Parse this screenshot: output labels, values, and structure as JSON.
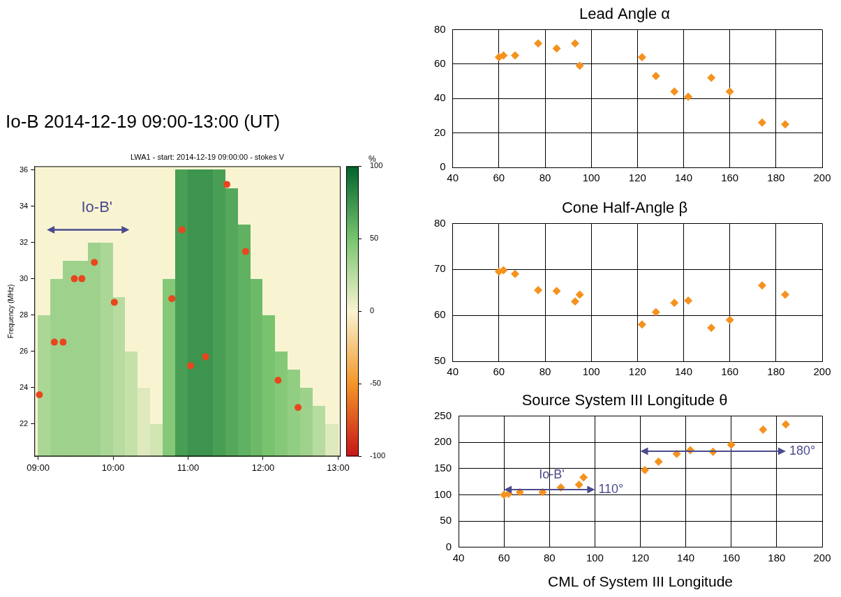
{
  "chart_data": [
    {
      "type": "heatmap",
      "title": "Io-B 2014-12-19 09:00-13:00 (UT)",
      "subtitle": "LWA1 - start: 2014-12-19 09:00:00 - stokes V",
      "y_label": "Frequency (MHz)",
      "xlim": [
        537,
        782
      ],
      "xticks": [
        {
          "value": 540,
          "label": "09:00"
        },
        {
          "value": 600,
          "label": "10:00"
        },
        {
          "value": 660,
          "label": "11:00"
        },
        {
          "value": 720,
          "label": "12:00"
        },
        {
          "value": 780,
          "label": "13:00"
        }
      ],
      "ylim": [
        20.2,
        36.2
      ],
      "yticks": [
        22,
        24,
        26,
        28,
        30,
        32,
        34,
        36
      ],
      "grid": false,
      "heatmap": {
        "x_edges": [
          540,
          550,
          560,
          570,
          580,
          590,
          600,
          610,
          620,
          630,
          640,
          650,
          660,
          670,
          680,
          690,
          700,
          710,
          720,
          730,
          740,
          750,
          760,
          770,
          780
        ],
        "y_edges": [
          20,
          21,
          22,
          23,
          24,
          25,
          26,
          27,
          28,
          29,
          30,
          31,
          32,
          33,
          34,
          35,
          36
        ],
        "cells": [
          [
            30,
            35,
            35,
            35,
            35,
            30,
            25,
            20,
            10,
            15,
            45,
            70,
            75,
            75,
            70,
            65,
            60,
            55,
            50,
            45,
            40,
            35,
            25,
            10
          ],
          [
            30,
            35,
            35,
            35,
            35,
            30,
            25,
            20,
            10,
            15,
            45,
            70,
            75,
            75,
            70,
            65,
            60,
            55,
            50,
            45,
            40,
            35,
            25,
            10
          ],
          [
            30,
            35,
            35,
            35,
            35,
            30,
            25,
            20,
            10,
            0,
            45,
            70,
            75,
            75,
            70,
            65,
            60,
            55,
            50,
            45,
            40,
            35,
            25,
            0
          ],
          [
            30,
            35,
            35,
            35,
            35,
            30,
            25,
            20,
            10,
            0,
            45,
            70,
            75,
            75,
            70,
            65,
            60,
            55,
            50,
            45,
            40,
            35,
            0,
            0
          ],
          [
            30,
            35,
            35,
            35,
            35,
            30,
            25,
            20,
            0,
            0,
            45,
            70,
            75,
            75,
            70,
            65,
            60,
            55,
            50,
            45,
            40,
            0,
            0,
            0
          ],
          [
            30,
            35,
            35,
            35,
            35,
            30,
            25,
            20,
            0,
            0,
            45,
            70,
            75,
            75,
            70,
            65,
            60,
            55,
            50,
            45,
            0,
            0,
            0,
            0
          ],
          [
            30,
            35,
            35,
            35,
            35,
            30,
            25,
            0,
            0,
            0,
            45,
            70,
            75,
            75,
            70,
            65,
            60,
            55,
            50,
            0,
            0,
            0,
            0,
            0
          ],
          [
            30,
            35,
            35,
            35,
            35,
            30,
            25,
            0,
            0,
            0,
            45,
            70,
            75,
            75,
            70,
            65,
            60,
            55,
            50,
            0,
            0,
            0,
            0,
            0
          ],
          [
            0,
            35,
            35,
            35,
            35,
            30,
            25,
            0,
            0,
            0,
            45,
            70,
            75,
            75,
            70,
            65,
            60,
            55,
            0,
            0,
            0,
            0,
            0,
            0
          ],
          [
            0,
            35,
            35,
            35,
            35,
            30,
            0,
            0,
            0,
            0,
            45,
            70,
            75,
            75,
            70,
            65,
            60,
            55,
            0,
            0,
            0,
            0,
            0,
            0
          ],
          [
            0,
            0,
            35,
            35,
            35,
            30,
            0,
            0,
            0,
            0,
            0,
            70,
            75,
            75,
            70,
            65,
            60,
            0,
            0,
            0,
            0,
            0,
            0,
            0
          ],
          [
            0,
            0,
            0,
            0,
            35,
            30,
            0,
            0,
            0,
            0,
            0,
            70,
            75,
            75,
            70,
            65,
            60,
            0,
            0,
            0,
            0,
            0,
            0,
            0
          ],
          [
            0,
            0,
            0,
            0,
            0,
            0,
            0,
            0,
            0,
            0,
            0,
            70,
            75,
            75,
            70,
            65,
            60,
            0,
            0,
            0,
            0,
            0,
            0,
            0
          ],
          [
            0,
            0,
            0,
            0,
            0,
            0,
            0,
            0,
            0,
            0,
            0,
            70,
            75,
            75,
            70,
            65,
            0,
            0,
            0,
            0,
            0,
            0,
            0,
            0
          ],
          [
            0,
            0,
            0,
            0,
            0,
            0,
            0,
            0,
            0,
            0,
            0,
            70,
            75,
            75,
            70,
            65,
            0,
            0,
            0,
            0,
            0,
            0,
            0,
            0
          ],
          [
            0,
            0,
            0,
            0,
            0,
            0,
            0,
            0,
            0,
            0,
            0,
            70,
            75,
            75,
            70,
            0,
            0,
            0,
            0,
            0,
            0,
            0,
            0,
            0
          ]
        ]
      },
      "colorbar": {
        "range": [
          -100,
          100
        ],
        "ticks": [
          -100,
          -50,
          0,
          50,
          100
        ],
        "label": "%"
      },
      "x": [
        541,
        553,
        560,
        569,
        575,
        585,
        601,
        647,
        655,
        662,
        674,
        691,
        706,
        732,
        748
      ],
      "series": [
        {
          "type": "scatter",
          "color": "#e8461e",
          "marker": "circle",
          "values": [
            23.6,
            26.5,
            26.5,
            30.0,
            30.0,
            30.9,
            28.7,
            28.9,
            32.7,
            25.2,
            25.7,
            35.2,
            31.5,
            24.4,
            22.9
          ]
        }
      ],
      "arrows": [
        {
          "x": [
            547,
            613
          ],
          "y": 32.7
        }
      ],
      "annotations": [
        {
          "text": "Io-B'",
          "x": 587,
          "y": 33.9
        }
      ]
    },
    {
      "type": "scatter",
      "title": "Lead Angle α",
      "x": [
        60,
        62,
        67,
        77,
        85,
        93,
        95,
        122,
        128,
        136,
        142,
        152,
        160,
        174,
        184
      ],
      "series": [
        {
          "color": "#f5921e",
          "marker": "diamond",
          "values": [
            64,
            65,
            65,
            72,
            69,
            72,
            59,
            64,
            53,
            44,
            41,
            52,
            44,
            26,
            25
          ]
        }
      ],
      "xlim": [
        40,
        200
      ],
      "xticks": [
        40,
        60,
        80,
        100,
        120,
        140,
        160,
        180,
        200
      ],
      "ylim": [
        0,
        80
      ],
      "yticks": [
        0,
        20,
        40,
        60,
        80
      ],
      "grid": true
    },
    {
      "type": "scatter",
      "title": "Cone Half-Angle β",
      "x": [
        60,
        62,
        67,
        77,
        85,
        93,
        95,
        122,
        128,
        136,
        142,
        152,
        160,
        174,
        184
      ],
      "series": [
        {
          "color": "#f5921e",
          "marker": "diamond",
          "values": [
            69.5,
            69.8,
            69,
            65.5,
            65.3,
            63,
            64.5,
            58,
            60.7,
            62.7,
            63.2,
            57.3,
            59,
            66.5,
            64.5
          ]
        }
      ],
      "xlim": [
        40,
        200
      ],
      "xticks": [
        40,
        60,
        80,
        100,
        120,
        140,
        160,
        180,
        200
      ],
      "ylim": [
        50,
        80
      ],
      "yticks": [
        50,
        60,
        70,
        80
      ],
      "grid": true
    },
    {
      "type": "scatter",
      "title": "Source System III Longitude θ",
      "x_label": "CML of System III Longitude",
      "x": [
        60,
        62,
        67,
        77,
        85,
        93,
        95,
        122,
        128,
        136,
        142,
        152,
        160,
        174,
        184
      ],
      "series": [
        {
          "color": "#f5921e",
          "marker": "diamond",
          "values": [
            100,
            102,
            105,
            105,
            114,
            119,
            133,
            147,
            163,
            178,
            185,
            182,
            195,
            224,
            234
          ]
        }
      ],
      "xlim": [
        40,
        200
      ],
      "xticks": [
        40,
        60,
        80,
        100,
        120,
        140,
        160,
        180,
        200
      ],
      "ylim": [
        0,
        250
      ],
      "yticks": [
        0,
        50,
        100,
        150,
        200,
        250
      ],
      "grid": true,
      "arrows": [
        {
          "x": [
            60,
            100
          ],
          "y": 110,
          "text": "110°"
        },
        {
          "x": [
            120,
            184
          ],
          "y": 183,
          "text": "180°"
        }
      ],
      "annotations": [
        {
          "text": "Io-B'",
          "x": 81,
          "y": 138
        }
      ]
    }
  ]
}
